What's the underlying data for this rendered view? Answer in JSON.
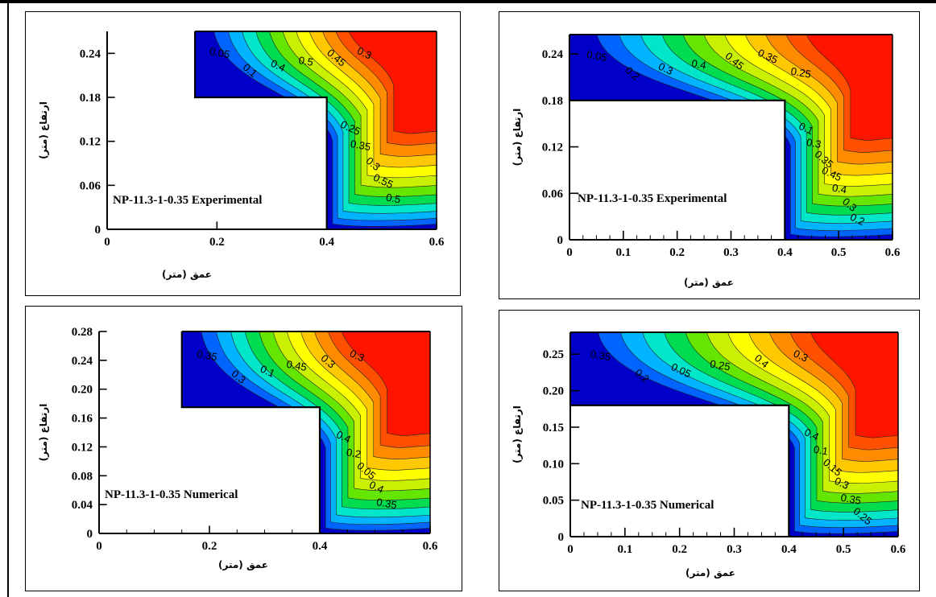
{
  "chart_data": [
    {
      "type": "contour",
      "id": "top-left",
      "annotation": "NP-11.3-1-0.35  Experimental",
      "xlabel": "عمق (متر)",
      "ylabel": "ارتفاع (متر)",
      "xlim": [
        0,
        0.6
      ],
      "ylim": [
        0,
        0.27
      ],
      "x_ticks": [
        "0",
        "0.2",
        "0.4",
        "0.6"
      ],
      "y_ticks": [
        "0",
        "0.06",
        "0.12",
        "0.18",
        "0.24"
      ],
      "step": {
        "corner_x": 0.4,
        "corner_y": 0.18,
        "upper_wall_x": 0.16
      },
      "contour_labels": [
        "0.05",
        "0.25",
        "0.1",
        "0.35",
        "0.4",
        "0.3",
        "0.5",
        "0.55",
        "0.45",
        "0.5",
        "0.3"
      ]
    },
    {
      "type": "contour",
      "id": "top-right",
      "annotation": "NP-11.3-1-0.35  Experimental",
      "xlabel": "عمق (متر)",
      "ylabel": "ارتفاع (متر)",
      "xlim": [
        0,
        0.6
      ],
      "ylim": [
        0,
        0.265
      ],
      "x_ticks": [
        "0",
        "0.1",
        "0.2",
        "0.3",
        "0.4",
        "0.5",
        "0.6"
      ],
      "y_ticks": [
        "0",
        "0.06",
        "0.12",
        "0.18",
        "0.24"
      ],
      "step": {
        "corner_x": 0.4,
        "corner_y": 0.18,
        "upper_wall_x": 0
      },
      "contour_labels": [
        "0.05",
        "0.1",
        "0.2",
        "0.3",
        "0.3",
        "0.35",
        "0.4",
        "0.45",
        "0.45",
        "0.4",
        "0.35",
        "0.3",
        "0.25",
        "0.2"
      ]
    },
    {
      "type": "contour",
      "id": "bottom-left",
      "annotation": "NP-11.3-1-0.35  Numerical",
      "xlabel": "عمق (متر)",
      "ylabel": "ارتفاع (متر)",
      "xlim": [
        0,
        0.6
      ],
      "ylim": [
        0,
        0.28
      ],
      "x_ticks": [
        "0",
        "0.2",
        "0.4",
        "0.6"
      ],
      "y_ticks": [
        "0",
        "0.04",
        "0.08",
        "0.12",
        "0.16",
        "0.20",
        "0.24",
        "0.28"
      ],
      "step": {
        "corner_x": 0.4,
        "corner_y": 0.175,
        "upper_wall_x": 0.15
      },
      "contour_labels": [
        "0.35",
        "0.4",
        "0.3",
        "0.2",
        "0.1",
        "0.05",
        "0.45",
        "0.4",
        "0.3",
        "0.35",
        "0.3"
      ]
    },
    {
      "type": "contour",
      "id": "bottom-right",
      "annotation": "NP-11.3-1-0.35  Numerical",
      "xlabel": "عمق (متر)",
      "ylabel": "ارتفاع (متر)",
      "xlim": [
        0,
        0.6
      ],
      "ylim": [
        0,
        0.28
      ],
      "x_ticks": [
        "0",
        "0.1",
        "0.2",
        "0.3",
        "0.4",
        "0.5",
        "0.6"
      ],
      "y_ticks": [
        "0",
        "0.05",
        "0.10",
        "0.15",
        "0.20",
        "0.25"
      ],
      "step": {
        "corner_x": 0.4,
        "corner_y": 0.18,
        "upper_wall_x": 0
      },
      "contour_labels": [
        "0.35",
        "0.4",
        "0.2",
        "0.1",
        "0.05",
        "0.15",
        "0.25",
        "0.3",
        "0.4",
        "0.35",
        "0.3",
        "0.25"
      ]
    }
  ],
  "colors": [
    "#0000c8",
    "#0064ff",
    "#00b4ff",
    "#00e6c8",
    "#00dc50",
    "#64e600",
    "#c8f000",
    "#ffff00",
    "#ffc800",
    "#ff8c00",
    "#ff5000",
    "#ff1400"
  ]
}
